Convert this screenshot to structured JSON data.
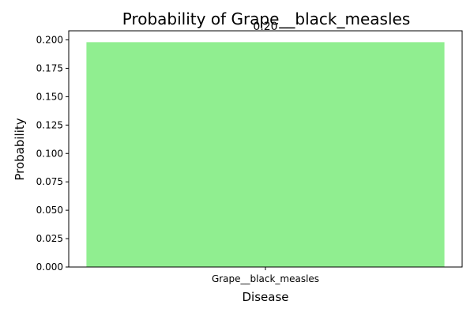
{
  "chart_data": {
    "type": "bar",
    "title": "Probability of Grape__black_measles",
    "xlabel": "Disease",
    "ylabel": "Probability",
    "categories": [
      "Grape__black_measles"
    ],
    "values": [
      0.198
    ],
    "data_labels": [
      "0.20"
    ],
    "ylim": [
      0,
      0.208
    ],
    "yticks": [
      0.0,
      0.025,
      0.05,
      0.075,
      0.1,
      0.125,
      0.15,
      0.175,
      0.2
    ],
    "ytick_labels": [
      "0.000",
      "0.025",
      "0.050",
      "0.075",
      "0.100",
      "0.125",
      "0.150",
      "0.175",
      "0.200"
    ],
    "grid": false,
    "legend": "none",
    "bar_color": "#90ee90"
  }
}
